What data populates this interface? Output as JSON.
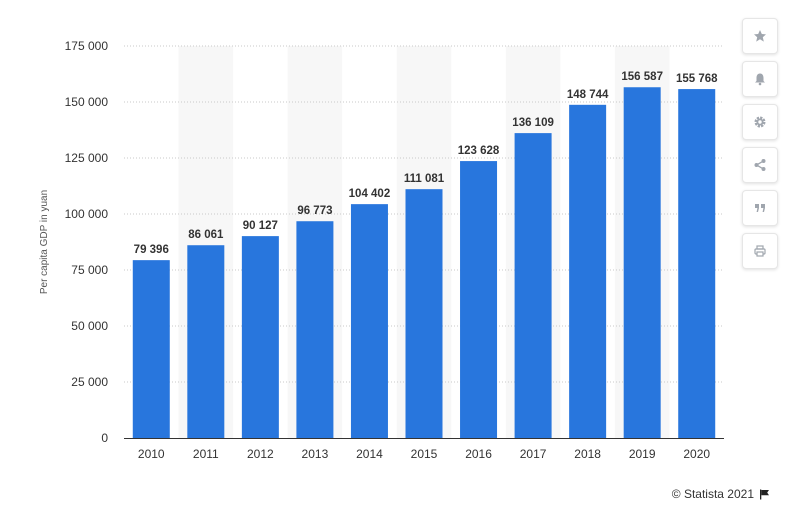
{
  "chart_data": {
    "type": "bar",
    "title": "",
    "xlabel": "",
    "ylabel": "Per capita GDP in yuan",
    "categories": [
      "2010",
      "2011",
      "2012",
      "2013",
      "2014",
      "2015",
      "2016",
      "2017",
      "2018",
      "2019",
      "2020"
    ],
    "values": [
      79396,
      86061,
      90127,
      96773,
      104402,
      111081,
      123628,
      136109,
      148744,
      156587,
      155768
    ],
    "value_labels": [
      "79 396",
      "86 061",
      "90 127",
      "96 773",
      "104 402",
      "111 081",
      "123 628",
      "136 109",
      "148 744",
      "156 587",
      "155 768"
    ],
    "ylim": [
      0,
      175000
    ],
    "yticks": [
      0,
      25000,
      50000,
      75000,
      100000,
      125000,
      150000,
      175000
    ],
    "ytick_labels": [
      "0",
      "25 000",
      "50 000",
      "75 000",
      "100 000",
      "125 000",
      "150 000",
      "175 000"
    ],
    "grid": true,
    "bar_color": "#2876dd",
    "band_color": "#f7f7f7"
  },
  "toolbar": {
    "buttons": [
      {
        "name": "favorite-button",
        "icon": "star-icon"
      },
      {
        "name": "notification-button",
        "icon": "bell-icon"
      },
      {
        "name": "settings-button",
        "icon": "gear-icon"
      },
      {
        "name": "share-button",
        "icon": "share-icon"
      },
      {
        "name": "cite-button",
        "icon": "quote-icon"
      },
      {
        "name": "print-button",
        "icon": "print-icon"
      }
    ]
  },
  "credit": {
    "text": "© Statista 2021"
  }
}
